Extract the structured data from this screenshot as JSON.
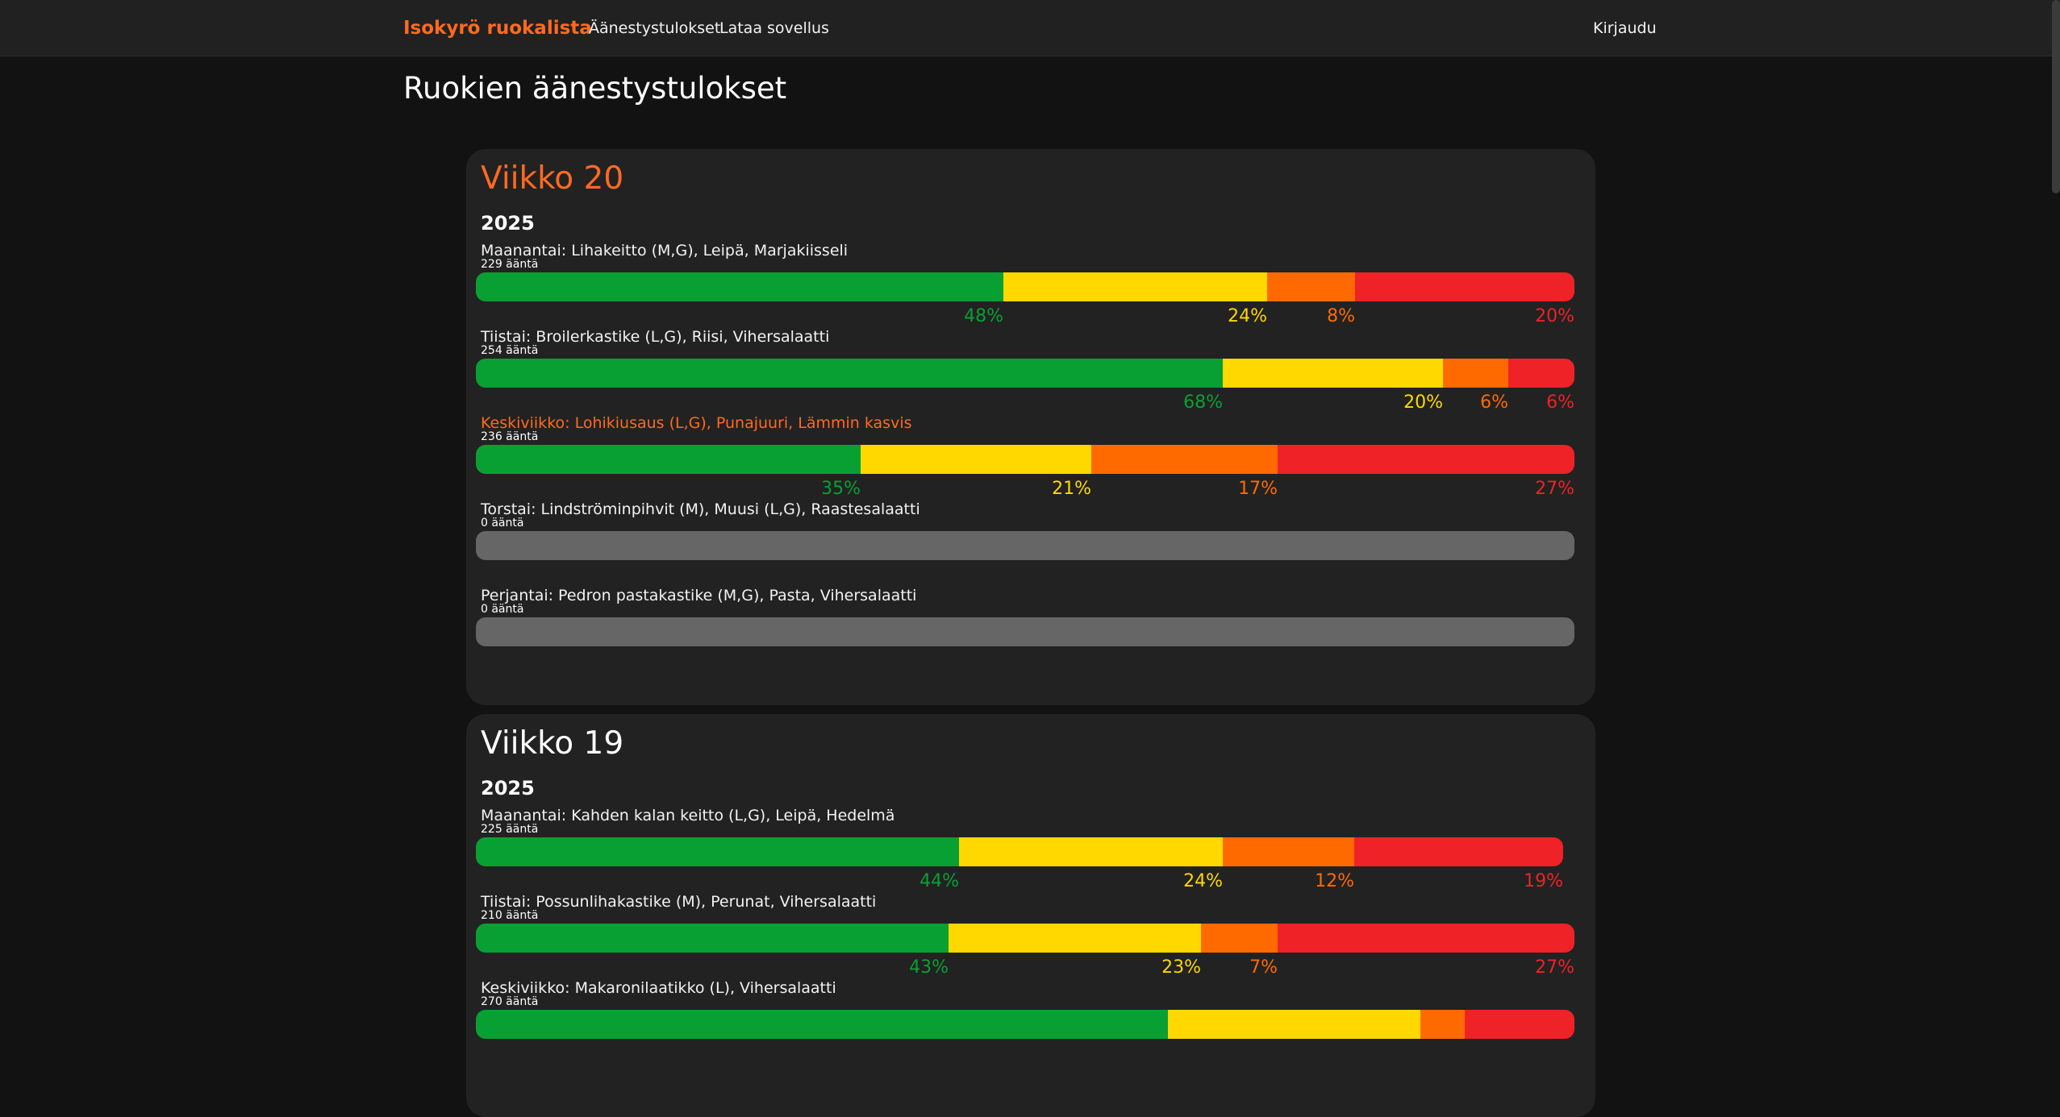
{
  "nav": {
    "brand": "Isokyrö ruokalista",
    "links": [
      "Äänestystulokset",
      "Lataa sovellus"
    ],
    "login": "Kirjaudu"
  },
  "page_title": "Ruokien äänestystulokset",
  "colors": {
    "green": "#09a033",
    "yellow": "#ffd800",
    "orange": "#ff6a00",
    "red": "#ee2227",
    "empty": "#666666",
    "accent": "#ff6a1f"
  },
  "weeks": [
    {
      "title": "Viikko 20",
      "current": true,
      "year": "2025",
      "days": [
        {
          "label": "Maanantai: Lihakeitto (M,G), Leipä, Marjakiisseli",
          "votes": "229 ääntä",
          "highlight": false,
          "fill": 1.0,
          "pct": [
            48,
            24,
            8,
            20
          ],
          "pct_labels": [
            "48%",
            "24%",
            "8%",
            "20%"
          ]
        },
        {
          "label": "Tiistai: Broilerkastike (L,G), Riisi, Vihersalaatti",
          "votes": "254 ääntä",
          "highlight": false,
          "fill": 1.0,
          "pct": [
            68,
            20,
            6,
            6
          ],
          "pct_labels": [
            "68%",
            "20%",
            "6%",
            "6%"
          ]
        },
        {
          "label": "Keskiviikko: Lohikiusaus (L,G), Punajuuri, Lämmin kasvis",
          "votes": "236 ääntä",
          "highlight": true,
          "fill": 1.0,
          "pct": [
            35,
            21,
            17,
            27
          ],
          "pct_labels": [
            "35%",
            "21%",
            "17%",
            "27%"
          ]
        },
        {
          "label": "Torstai: Lindströminpihvit (M), Muusi (L,G), Raastesalaatti",
          "votes": "0 ääntä",
          "highlight": false,
          "fill": 1.0,
          "pct": [],
          "pct_labels": []
        },
        {
          "label": "Perjantai: Pedron pastakastike (M,G), Pasta, Vihersalaatti",
          "votes": "0 ääntä",
          "highlight": false,
          "fill": 1.0,
          "pct": [],
          "pct_labels": []
        }
      ]
    },
    {
      "title": "Viikko 19",
      "current": false,
      "year": "2025",
      "days": [
        {
          "label": "Maanantai: Kahden kalan keitto (L,G), Leipä, Hedelmä",
          "votes": "225 ääntä",
          "highlight": false,
          "fill": 0.99,
          "pct": [
            44,
            24,
            12,
            19
          ],
          "pct_labels": [
            "44%",
            "24%",
            "12%",
            "19%"
          ]
        },
        {
          "label": "Tiistai: Possunlihakastike (M), Perunat, Vihersalaatti",
          "votes": "210 ääntä",
          "highlight": false,
          "fill": 1.0,
          "pct": [
            43,
            23,
            7,
            27
          ],
          "pct_labels": [
            "43%",
            "23%",
            "7%",
            "27%"
          ]
        },
        {
          "label": "Keskiviikko: Makaronilaatikko (L), Vihersalaatti",
          "votes": "270 ääntä",
          "highlight": false,
          "fill": 1.0,
          "pct": [
            63,
            23,
            4,
            10
          ],
          "pct_labels": []
        }
      ]
    }
  ]
}
